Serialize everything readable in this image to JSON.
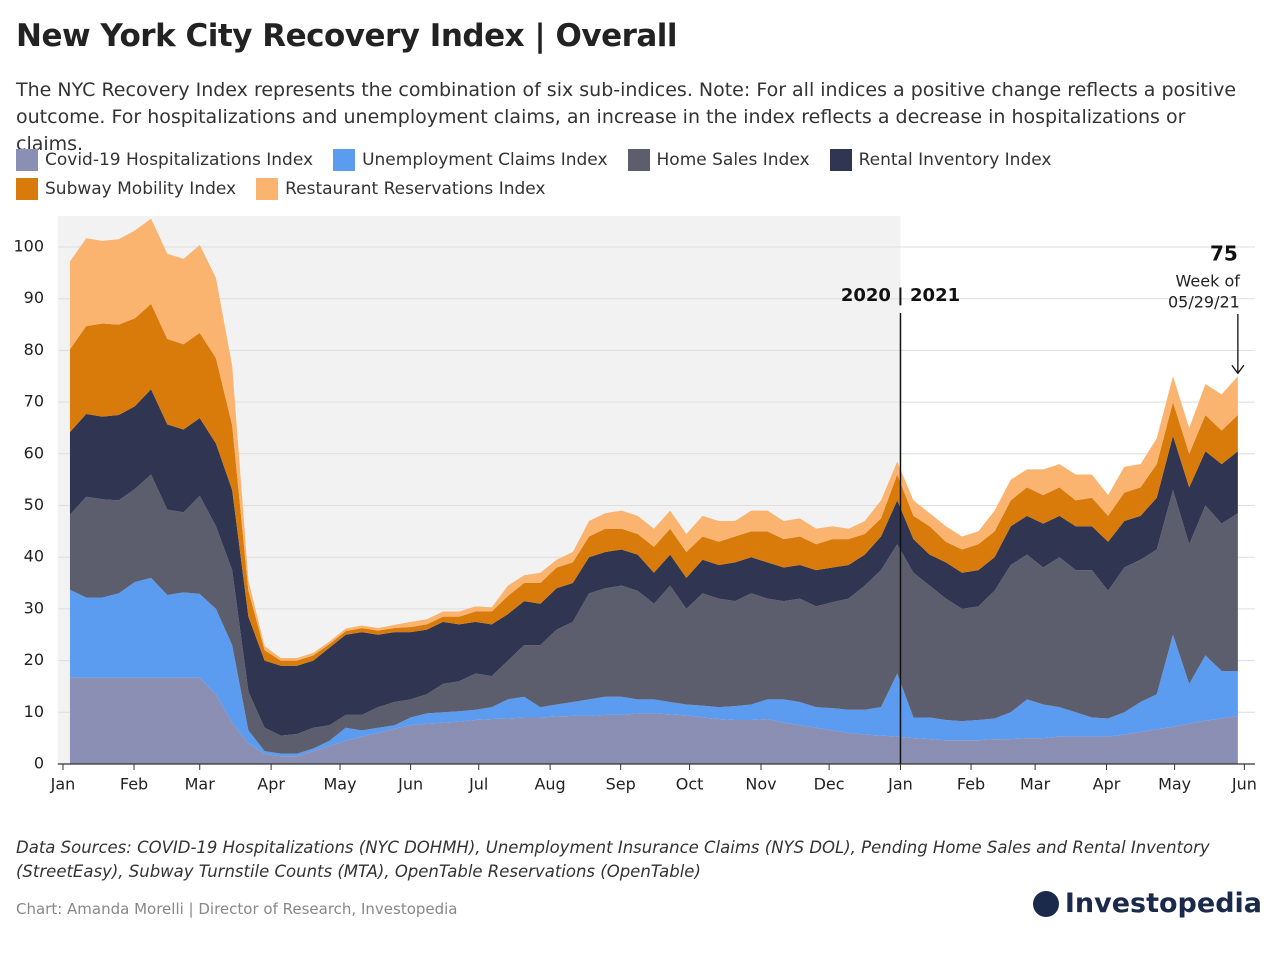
{
  "chart_data": {
    "type": "area",
    "stacked": true,
    "title": "New York City Recovery Index | Overall",
    "subtitle": "The NYC Recovery Index represents the combination of six sub-indices. Note: For all indices a positive change reflects a positive outcome. For hospitalizations and unemployment claims, an increase in the index reflects a decrease in hospitalizations or claims.",
    "x": [
      0,
      1,
      2,
      3,
      4,
      5,
      6,
      7,
      8,
      9,
      10,
      11,
      12,
      13,
      14,
      15,
      16,
      17,
      18,
      19,
      20,
      21,
      22,
      23,
      24,
      25,
      26,
      27,
      28,
      29,
      30,
      31,
      32,
      33,
      34,
      35,
      36,
      37,
      38,
      39,
      40,
      41,
      42,
      43,
      44,
      45,
      46,
      47,
      48,
      49,
      50,
      51,
      52,
      53,
      54,
      55,
      56,
      57,
      58,
      59,
      60,
      61,
      62,
      63,
      64,
      65,
      66,
      67,
      68,
      69,
      70,
      71,
      72
    ],
    "xlim": [
      -0.75,
      73.05
    ],
    "xticks": [
      {
        "value": -0.43,
        "label": "Jan"
      },
      {
        "value": 3.95,
        "label": "Feb"
      },
      {
        "value": 8.0,
        "label": "Mar"
      },
      {
        "value": 12.4,
        "label": "Apr"
      },
      {
        "value": 16.65,
        "label": "May"
      },
      {
        "value": 21.0,
        "label": "Jun"
      },
      {
        "value": 25.2,
        "label": "Jul"
      },
      {
        "value": 29.6,
        "label": "Aug"
      },
      {
        "value": 33.95,
        "label": "Sep"
      },
      {
        "value": 38.2,
        "label": "Oct"
      },
      {
        "value": 42.6,
        "label": "Nov"
      },
      {
        "value": 46.8,
        "label": "Dec"
      },
      {
        "value": 51.2,
        "label": "Jan"
      },
      {
        "value": 55.55,
        "label": "Feb"
      },
      {
        "value": 59.5,
        "label": "Mar"
      },
      {
        "value": 63.9,
        "label": "Apr"
      },
      {
        "value": 68.1,
        "label": "May"
      },
      {
        "value": 72.4,
        "label": "Jun"
      }
    ],
    "ylim": [
      0,
      106
    ],
    "yticks": [
      0,
      10,
      20,
      30,
      40,
      50,
      60,
      70,
      80,
      90,
      100
    ],
    "grid": true,
    "series": [
      {
        "name": "Covid-19 Hospitalizations Index",
        "color": "#8b8fb3",
        "values": [
          16.7,
          16.7,
          16.7,
          16.7,
          16.7,
          16.7,
          16.7,
          16.7,
          16.7,
          13.5,
          8,
          4,
          2,
          1.5,
          1.5,
          2.5,
          3.5,
          4.5,
          5.3,
          6,
          6.8,
          7.5,
          7.8,
          8,
          8.2,
          8.5,
          8.7,
          8.8,
          9,
          9,
          9.2,
          9.3,
          9.3,
          9.5,
          9.5,
          9.8,
          9.8,
          9.6,
          9.4,
          9,
          8.7,
          8.5,
          8.5,
          8.7,
          8,
          7.5,
          7,
          6.5,
          6,
          5.7,
          5.5,
          5.3,
          5,
          4.8,
          4.6,
          4.6,
          4.6,
          4.8,
          4.8,
          5,
          5,
          5.3,
          5.3,
          5.3,
          5.3,
          5.7,
          6.2,
          6.7,
          7.2,
          7.8,
          8.4,
          8.8,
          9.3
        ]
      },
      {
        "name": "Unemployment Claims Index",
        "color": "#5b9bf0",
        "values": [
          17,
          15.5,
          15.5,
          16.3,
          18.5,
          19.3,
          16,
          16.5,
          16.2,
          16.5,
          15,
          2.5,
          0.5,
          0.5,
          0.5,
          0.5,
          1,
          2.5,
          1.2,
          1,
          0.7,
          1.5,
          2,
          2,
          2,
          2,
          2.3,
          3.7,
          4,
          2,
          2.3,
          2.7,
          3.2,
          3.5,
          3.5,
          2.7,
          2.7,
          2.4,
          2.1,
          2.3,
          2.3,
          2.7,
          3,
          3.8,
          4.5,
          4.5,
          4,
          4.3,
          4.5,
          4.8,
          5.5,
          12.2,
          4,
          4.2,
          3.9,
          3.7,
          3.9,
          4,
          5.2,
          7.5,
          6.5,
          5.7,
          4.7,
          3.7,
          3.5,
          4.3,
          5.8,
          6.8,
          17.8,
          7.7,
          12.6,
          9.2,
          8.7
        ]
      },
      {
        "name": "Home Sales Index",
        "color": "#5c5e6d",
        "values": [
          14.5,
          19.5,
          19,
          18,
          18,
          20,
          16.5,
          15.5,
          19,
          16,
          14.5,
          7.5,
          4.5,
          3.5,
          3.8,
          4,
          3,
          2.5,
          3,
          4,
          4.5,
          3.5,
          3.7,
          5.5,
          5.8,
          7,
          6,
          7.5,
          10,
          12,
          14.5,
          15.5,
          20.5,
          21,
          21.5,
          21,
          18.5,
          22.5,
          18.5,
          21.7,
          21,
          20.3,
          21.5,
          19.5,
          19,
          20,
          19.5,
          20.5,
          21.5,
          24,
          26.5,
          25,
          28,
          25.5,
          23.5,
          21.7,
          22,
          24.7,
          28.5,
          28,
          26.5,
          29,
          27.5,
          28.5,
          24.7,
          28,
          27.5,
          28,
          28,
          27,
          29,
          28.5,
          30.5
        ]
      },
      {
        "name": "Rental Inventory Index",
        "color": "#303651",
        "values": [
          16,
          16,
          16,
          16.5,
          16,
          16.5,
          16.5,
          16,
          15,
          16,
          15.5,
          14.5,
          13,
          13.5,
          13.2,
          13,
          15,
          15.5,
          16,
          14,
          13.5,
          13,
          12.5,
          12,
          11,
          10,
          10,
          9,
          8.5,
          8,
          8,
          7.5,
          7,
          7,
          7,
          7,
          6,
          6,
          6,
          6.5,
          6.5,
          7.5,
          7,
          7,
          6.5,
          6.5,
          7,
          6.7,
          6.5,
          6,
          6.5,
          8.5,
          6.5,
          6,
          7,
          7,
          7,
          6.5,
          7.5,
          7.5,
          8.5,
          8,
          8.5,
          8.5,
          9.5,
          9,
          8.5,
          10,
          10.5,
          11,
          10.5,
          11.5,
          12
        ]
      },
      {
        "name": "Subway Mobility Index",
        "color": "#d97b0b",
        "values": [
          16,
          17,
          18,
          17.5,
          17,
          16.5,
          16.5,
          16.5,
          16.5,
          16.5,
          12.5,
          5,
          2,
          1,
          1,
          1,
          0.7,
          0.7,
          0.8,
          0.8,
          0.8,
          1,
          1,
          1,
          1.5,
          2,
          2.5,
          3.5,
          3.5,
          4,
          4,
          4,
          4,
          4.5,
          4,
          4,
          5,
          5,
          5,
          4.5,
          4.5,
          5,
          5,
          6,
          5.5,
          5.5,
          5,
          5.5,
          5,
          4,
          3.5,
          5,
          4.5,
          5.5,
          4,
          4.5,
          5,
          5,
          5,
          5.5,
          5.5,
          5.5,
          5,
          5.5,
          5,
          5.5,
          5.5,
          6.5,
          6.5,
          6.5,
          7,
          6.5,
          7
        ]
      },
      {
        "name": "Restaurant Reservations Index",
        "color": "#fab46f",
        "values": [
          17,
          17,
          16,
          16.5,
          17,
          16.5,
          16.5,
          16.5,
          17,
          15.5,
          11.5,
          2,
          0.8,
          0.5,
          0.5,
          0.5,
          0.5,
          0.5,
          0.5,
          0.5,
          0.6,
          1,
          1,
          1,
          1,
          1,
          0.8,
          2,
          1.5,
          2,
          1.5,
          2,
          3,
          3,
          3.5,
          3.5,
          3.5,
          3.5,
          3.5,
          4,
          4,
          3,
          4,
          4,
          3.5,
          3.5,
          3,
          2.5,
          2,
          2.5,
          3.5,
          2.5,
          3,
          2.5,
          3,
          2.5,
          2.5,
          4,
          4,
          3.5,
          5,
          4.5,
          5,
          4.5,
          4,
          5,
          4.5,
          5,
          5,
          5,
          6,
          7,
          7.5
        ]
      }
    ],
    "divider_label": "2020 | 2021",
    "end_total": 75,
    "end_note": "Week of",
    "end_date": "05/29/21",
    "source": "Data Sources: COVID-19 Hospitalizations (NYC DOHMH), Unemployment Insurance Claims (NYS DOL), Pending Home Sales and Rental Inventory (StreetEasy), Subway Turnstile Counts (MTA), OpenTable Reservations (OpenTable)",
    "credit": "Chart: Amanda Morelli | Director of Research, Investopedia",
    "logo": "Investopedia"
  }
}
